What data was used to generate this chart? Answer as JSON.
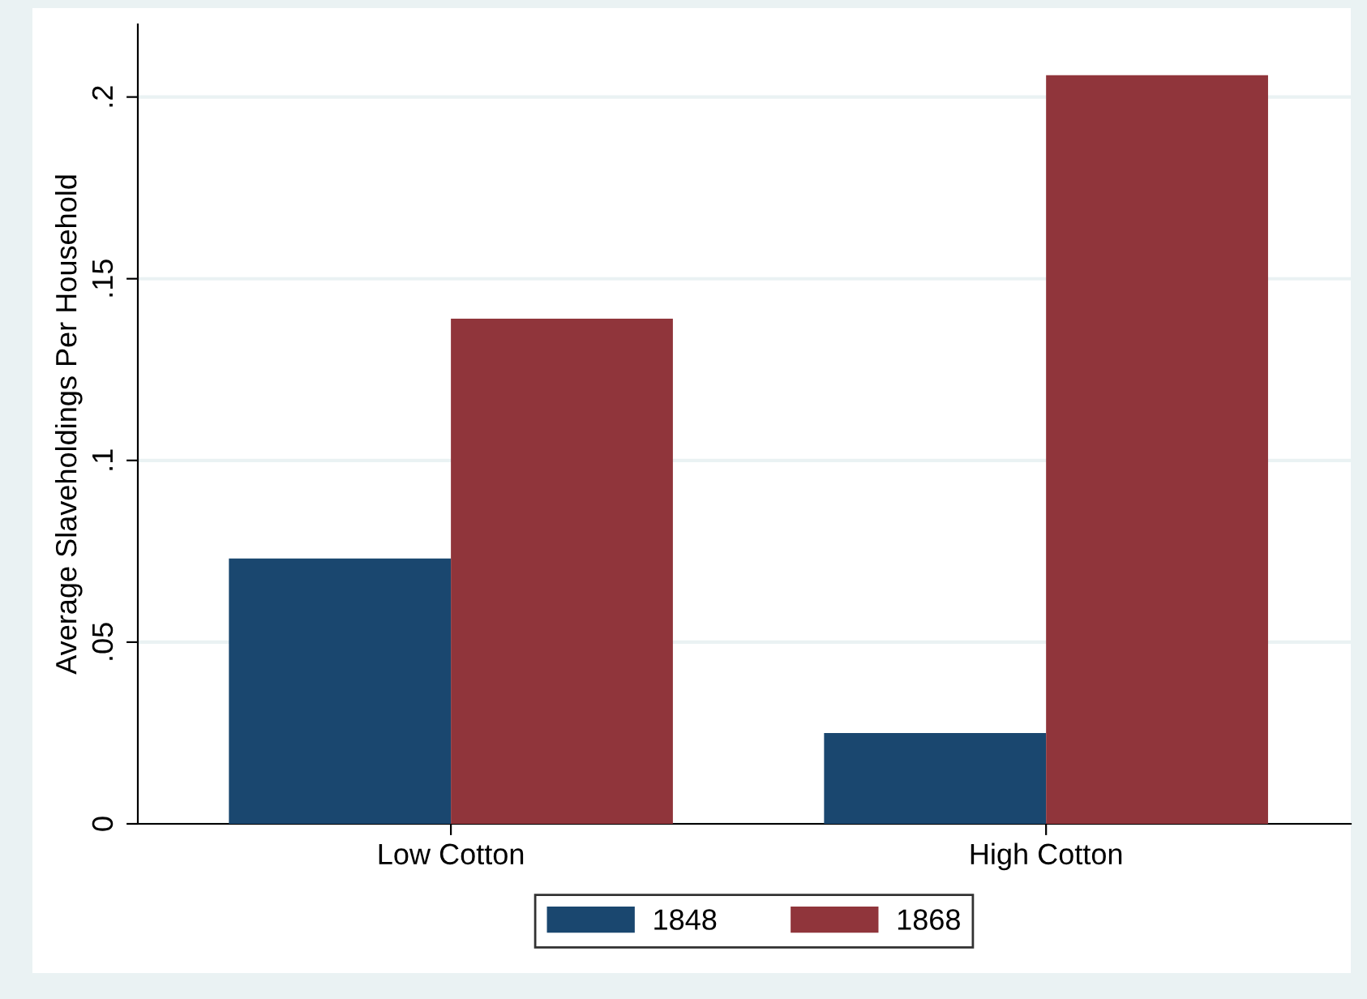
{
  "chart_data": {
    "type": "bar",
    "ylabel": "Average Slaveholdings Per Household",
    "categories": [
      "Low Cotton",
      "High Cotton"
    ],
    "series": [
      {
        "name": "1848",
        "color": "#1a476f",
        "values": [
          0.073,
          0.025
        ]
      },
      {
        "name": "1868",
        "color": "#90353b",
        "values": [
          0.139,
          0.206
        ]
      }
    ],
    "ylim": [
      0,
      0.22
    ],
    "yticks": [
      0,
      {
        "value": 0.05,
        "label": ".05"
      },
      {
        "value": 0.1,
        "label": ".1"
      },
      {
        "value": 0.15,
        "label": ".15"
      },
      {
        "value": 0.2,
        "label": ".2"
      }
    ],
    "grid": "y",
    "legend": "bottom"
  }
}
